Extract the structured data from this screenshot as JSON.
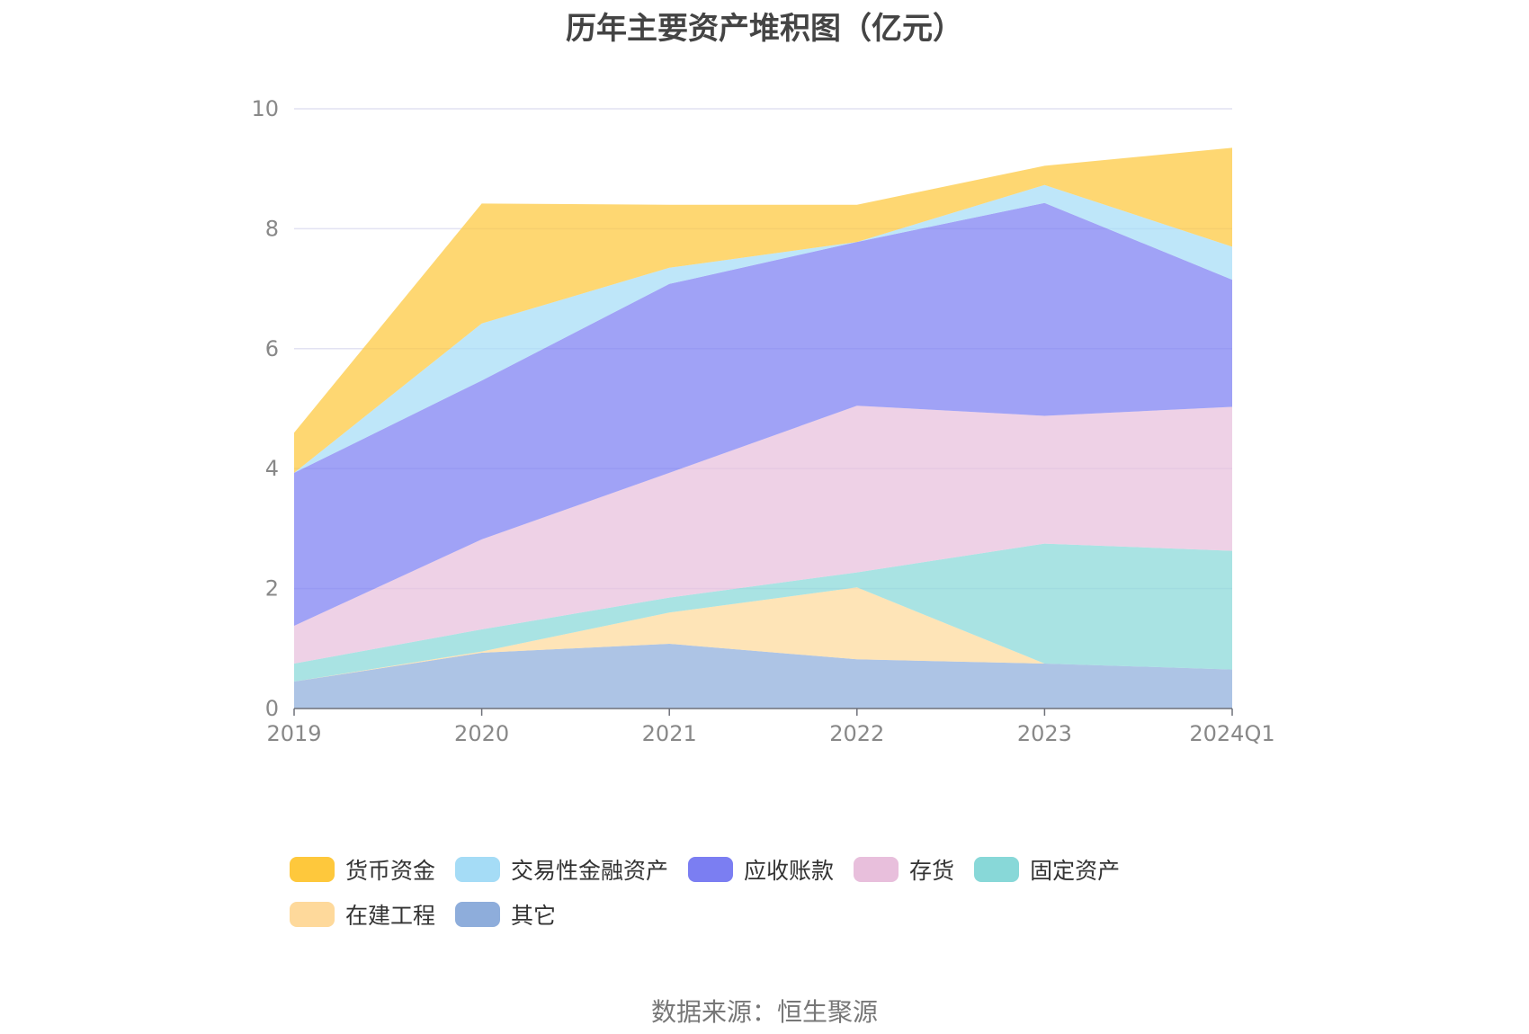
{
  "chart_data": {
    "type": "area",
    "stacked": true,
    "title": "历年主要资产堆积图（亿元）",
    "categories": [
      "2019",
      "2020",
      "2021",
      "2022",
      "2023",
      "2024Q1"
    ],
    "ylim": [
      0,
      10
    ],
    "yticks": [
      0,
      2,
      4,
      6,
      8,
      10
    ],
    "grid": true,
    "legend_position": "bottom",
    "series": [
      {
        "name": "其它",
        "color": "#8eaddb",
        "values": [
          0.45,
          0.93,
          1.08,
          0.82,
          0.75,
          0.65
        ]
      },
      {
        "name": "在建工程",
        "color": "#fed99b",
        "values": [
          0.0,
          0.02,
          0.52,
          1.2,
          0.0,
          0.0
        ]
      },
      {
        "name": "固定资产",
        "color": "#88d8d8",
        "values": [
          0.3,
          0.37,
          0.25,
          0.25,
          2.0,
          1.98
        ]
      },
      {
        "name": "存货",
        "color": "#e8bfdc",
        "values": [
          0.63,
          1.5,
          2.08,
          2.78,
          2.13,
          2.4
        ]
      },
      {
        "name": "应收账款",
        "color": "#7b7ef2",
        "values": [
          2.55,
          2.65,
          3.15,
          2.73,
          3.55,
          2.12
        ]
      },
      {
        "name": "交易性金融资产",
        "color": "#a5dcf6",
        "values": [
          0.0,
          0.95,
          0.27,
          0.0,
          0.3,
          0.55
        ]
      },
      {
        "name": "货币资金",
        "color": "#fec83c",
        "values": [
          0.67,
          2.0,
          1.05,
          0.62,
          0.32,
          1.65
        ]
      }
    ],
    "legend_order": [
      "货币资金",
      "交易性金融资产",
      "应收账款",
      "存货",
      "固定资产",
      "在建工程",
      "其它"
    ]
  },
  "source": "数据来源：恒生聚源"
}
